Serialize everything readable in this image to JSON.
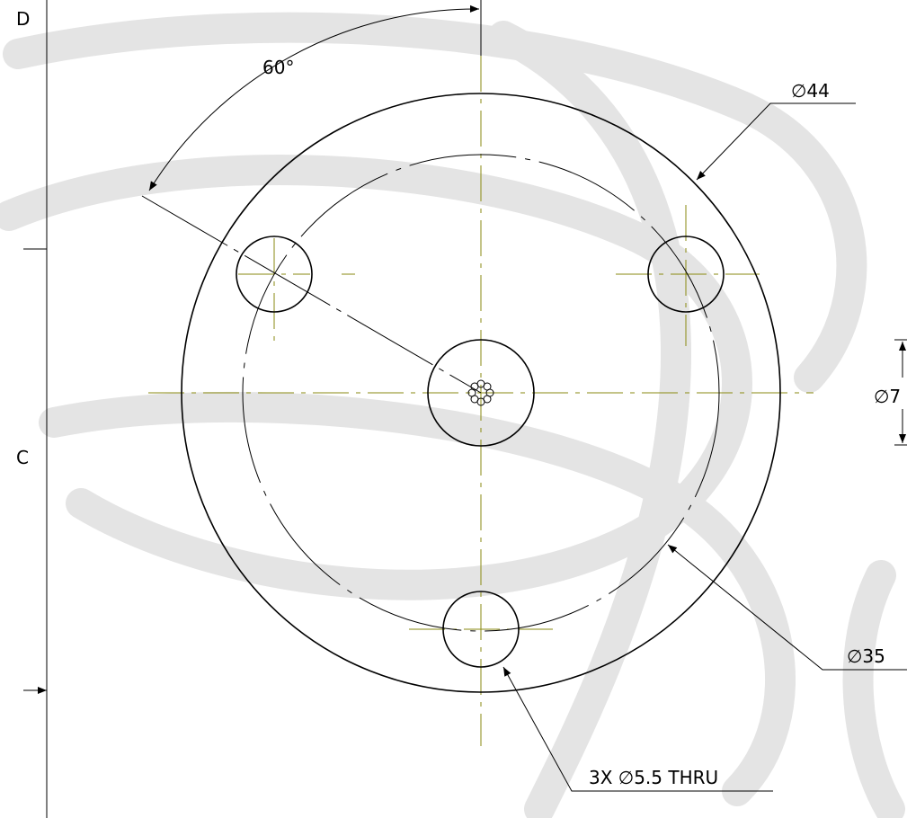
{
  "labels": {
    "zone_d": "D",
    "zone_c": "C",
    "angle": "60°",
    "outer_dia": "∅44",
    "bolt_circle_dia": "∅35",
    "center_dia": "∅7",
    "holes": "3X ∅5.5 THRU"
  }
}
